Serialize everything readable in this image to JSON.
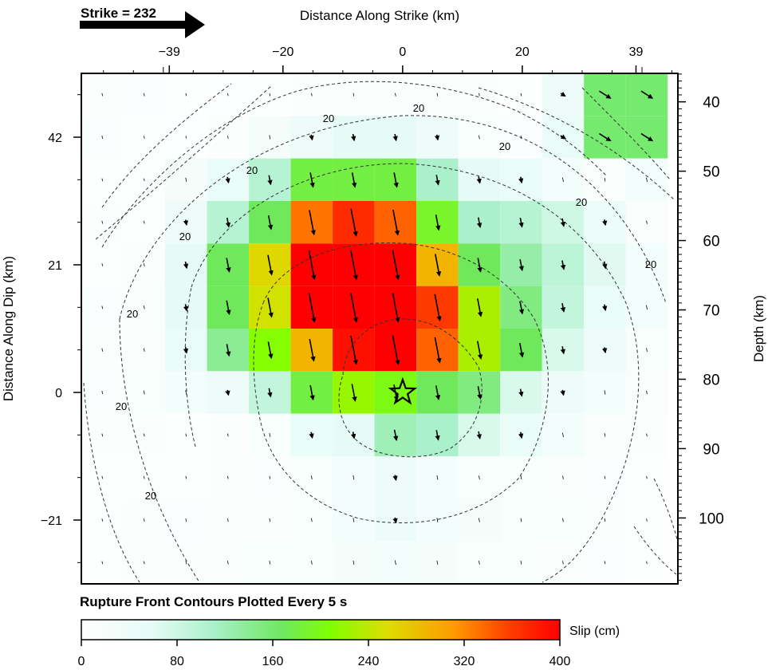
{
  "chart_data": {
    "type": "heatmap",
    "strike_label": "Strike = 232",
    "xlabel_top": "Distance Along Strike (km)",
    "ylabel_left": "Distance Along Dip (km)",
    "ylabel_right": "Depth (km)",
    "footnote": "Rupture Front Contours Plotted Every 5 s",
    "colorbar_label": "Slip (cm)",
    "colorbar_ticks": [
      "0",
      "80",
      "160",
      "240",
      "320",
      "400"
    ],
    "colorbar_range": [
      0,
      400
    ],
    "x_ticks": [
      {
        "label": "−39",
        "value": -39
      },
      {
        "label": "−20",
        "value": -20
      },
      {
        "label": "0",
        "value": 0
      },
      {
        "label": "20",
        "value": 20
      },
      {
        "label": "39",
        "value": 39
      }
    ],
    "x_range": [
      -53.7,
      46
    ],
    "y_left_ticks": [
      {
        "label": "42",
        "value": 42
      },
      {
        "label": "21",
        "value": 21
      },
      {
        "label": "0",
        "value": 0
      },
      {
        "label": "−21",
        "value": -21
      }
    ],
    "y_left_range": [
      -31.5,
      52.5
    ],
    "y_right_ticks": [
      {
        "label": "40",
        "value": 40
      },
      {
        "label": "50",
        "value": 50
      },
      {
        "label": "60",
        "value": 60
      },
      {
        "label": "70",
        "value": 70
      },
      {
        "label": "80",
        "value": 80
      },
      {
        "label": "90",
        "value": 90
      },
      {
        "label": "100",
        "value": 100
      }
    ],
    "y_right_range": [
      35.9,
      109.5
    ],
    "contour_labels": [
      "20",
      "20",
      "20",
      "20",
      "20",
      "20",
      "20",
      "20",
      "20",
      "20",
      "20"
    ],
    "hypocenter": {
      "strike_km": 0,
      "dip_km": 0
    },
    "grid": {
      "nx": 14,
      "ny": 12,
      "cell_km": 7,
      "x_start_km": -53.7,
      "y_top_km": 52.5
    },
    "slip_cm": [
      [
        8,
        10,
        5,
        3,
        6,
        8,
        12,
        12,
        12,
        8,
        6,
        40,
        160,
        160
      ],
      [
        10,
        5,
        3,
        8,
        25,
        40,
        60,
        60,
        40,
        20,
        10,
        50,
        160,
        160
      ],
      [
        5,
        5,
        25,
        50,
        100,
        180,
        180,
        180,
        110,
        60,
        50,
        30,
        15,
        30
      ],
      [
        8,
        6,
        40,
        100,
        170,
        330,
        370,
        340,
        190,
        110,
        100,
        80,
        45,
        15
      ],
      [
        6,
        8,
        60,
        170,
        260,
        400,
        400,
        400,
        290,
        170,
        130,
        95,
        65,
        30
      ],
      [
        10,
        15,
        60,
        170,
        250,
        400,
        400,
        400,
        360,
        230,
        150,
        90,
        50,
        30
      ],
      [
        12,
        15,
        50,
        140,
        210,
        290,
        390,
        400,
        340,
        230,
        170,
        70,
        40,
        20
      ],
      [
        10,
        20,
        30,
        40,
        90,
        180,
        220,
        200,
        170,
        150,
        70,
        40,
        30,
        15
      ],
      [
        8,
        8,
        6,
        8,
        20,
        50,
        60,
        120,
        110,
        70,
        50,
        30,
        15,
        8
      ],
      [
        5,
        6,
        6,
        8,
        10,
        20,
        30,
        40,
        30,
        20,
        20,
        15,
        10,
        5
      ],
      [
        5,
        8,
        10,
        12,
        15,
        18,
        30,
        40,
        30,
        25,
        20,
        20,
        15,
        5
      ],
      [
        5,
        8,
        12,
        15,
        18,
        20,
        25,
        30,
        25,
        20,
        18,
        15,
        10,
        5
      ]
    ]
  }
}
